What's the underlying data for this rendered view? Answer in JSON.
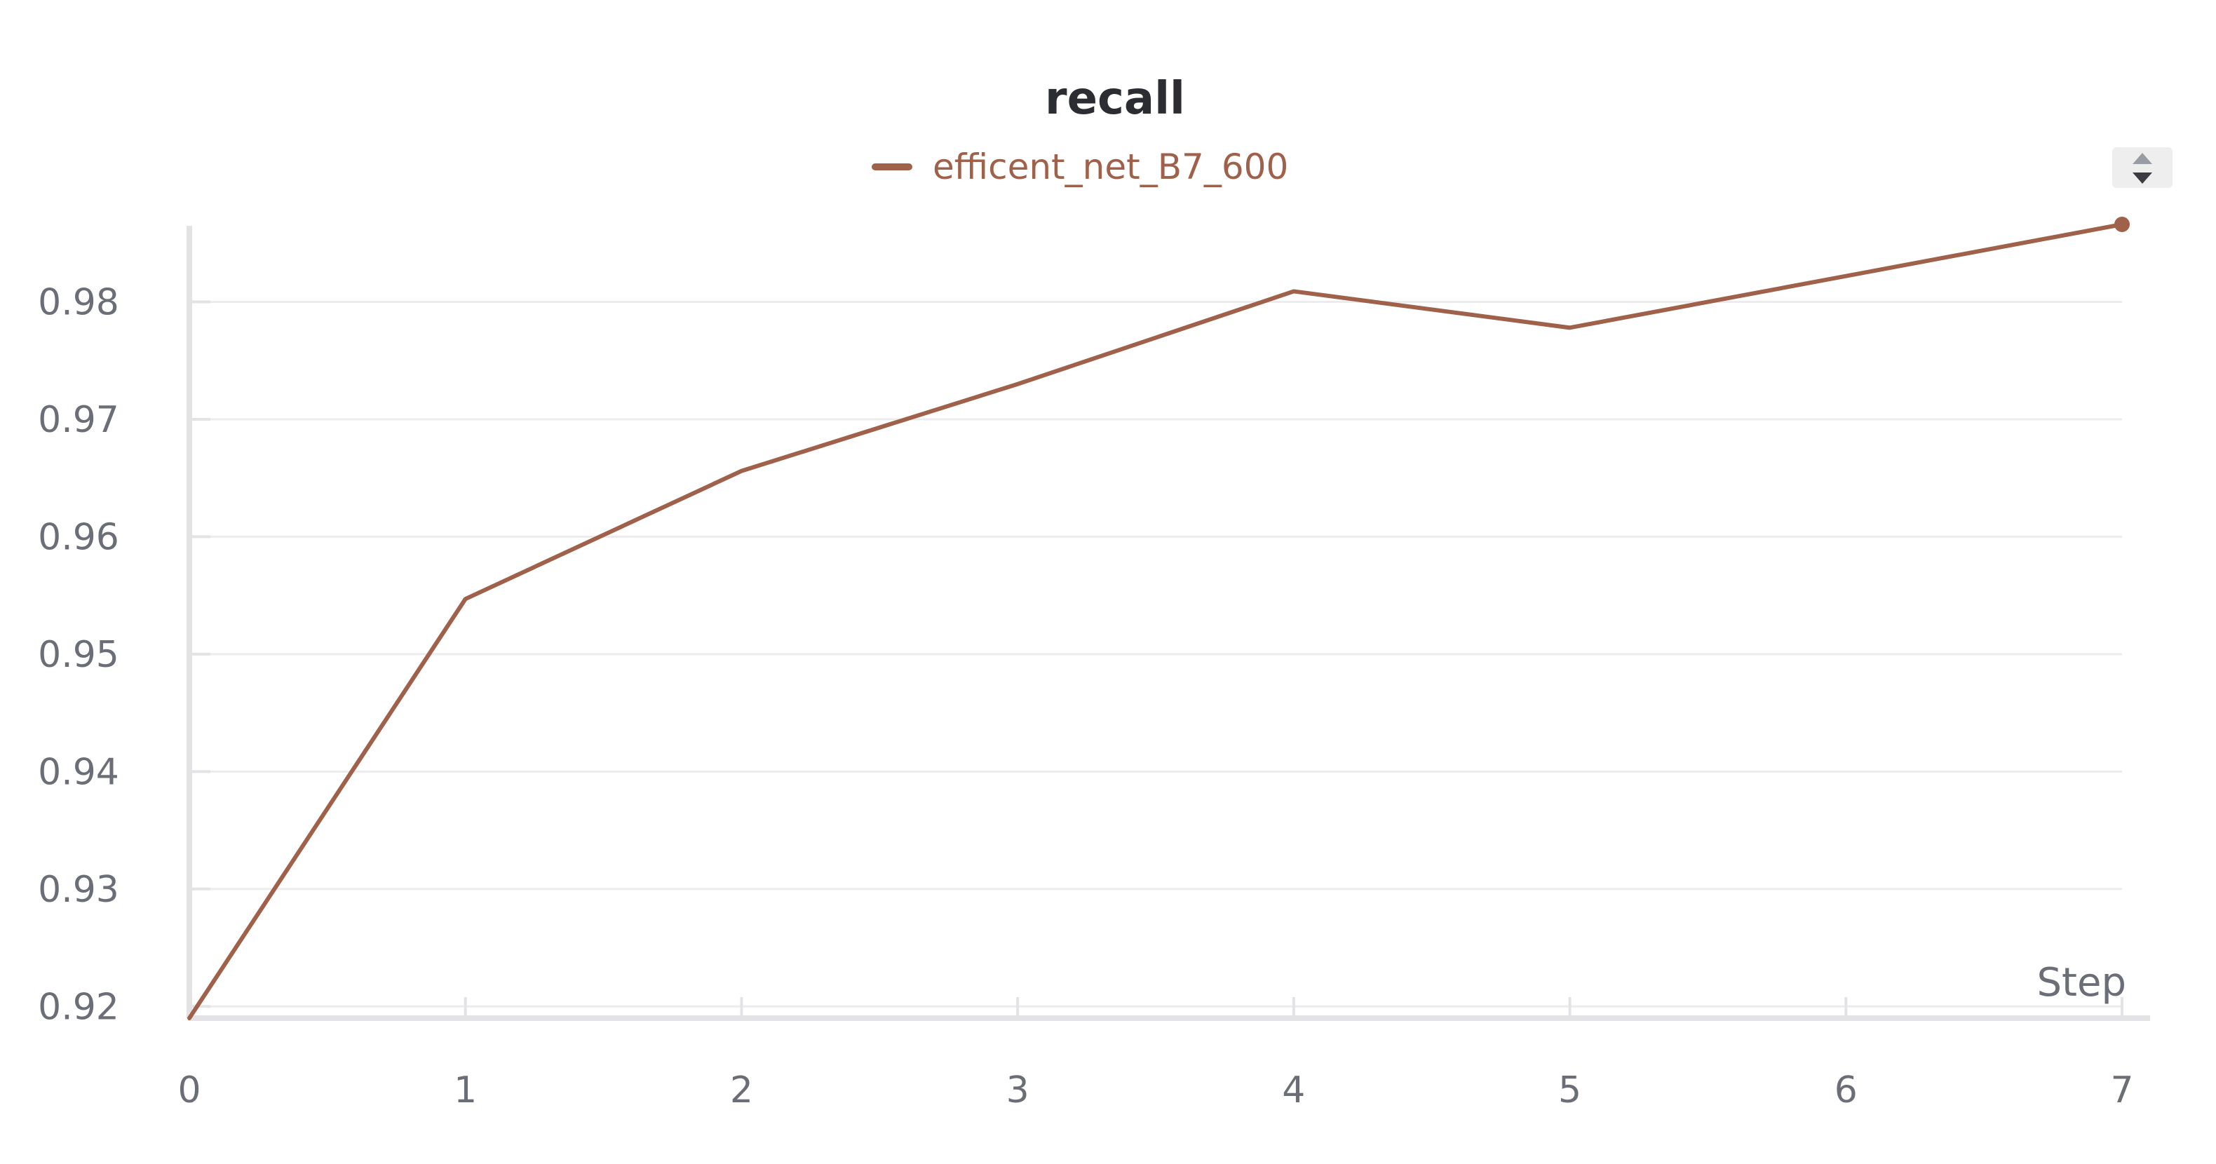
{
  "chart_data": {
    "type": "line",
    "title": "recall",
    "xlabel": "Step",
    "ylabel": "",
    "x": [
      0,
      1,
      2,
      3,
      4,
      5,
      6,
      7
    ],
    "xticks": [
      "0",
      "1",
      "2",
      "3",
      "4",
      "5",
      "6",
      "7"
    ],
    "yticks": [
      "0.92",
      "0.93",
      "0.94",
      "0.95",
      "0.96",
      "0.97",
      "0.98"
    ],
    "xlim": [
      0,
      7
    ],
    "ylim": [
      0.919,
      0.9866
    ],
    "grid": true,
    "legend_position": "top-center",
    "series": [
      {
        "name": "efficent_net_B7_600",
        "color": "#a0614a",
        "values": [
          0.919,
          0.9547,
          0.9656,
          0.973,
          0.9809,
          0.9778,
          0.9822,
          0.9866
        ]
      }
    ]
  },
  "controls": {
    "legend_sort_icon": "sort-updown-icon"
  }
}
